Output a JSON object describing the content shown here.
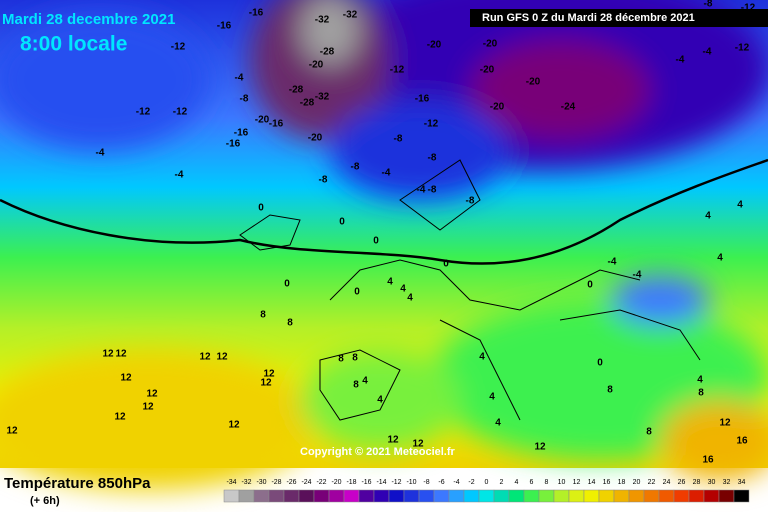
{
  "header": {
    "date": "Mardi 28 decembre 2021",
    "time": "8:00 locale",
    "run": "Run GFS 0 Z du Mardi 28 décembre 2021"
  },
  "map": {
    "copyright": "Copyright © 2021 Meteociel.fr",
    "contour_labels": [
      -16,
      -12,
      -16,
      -32,
      -32,
      -28,
      -20,
      -12,
      -20,
      -20,
      -20,
      -20,
      -24,
      -20,
      -16,
      -12,
      -8,
      -8,
      -8,
      -8,
      -4,
      -12,
      -12,
      -4,
      -8,
      -4,
      -4,
      -20,
      -16,
      -16,
      -16,
      -20,
      -28,
      -28,
      -32,
      0,
      0,
      0,
      0,
      0,
      0,
      4,
      4,
      4,
      8,
      8,
      12,
      12,
      12,
      12,
      12,
      12,
      12,
      12,
      12,
      12,
      12,
      12,
      8,
      8,
      8,
      4,
      4,
      4,
      4,
      4,
      0,
      4,
      8,
      8,
      4,
      4,
      4,
      0,
      8,
      12,
      16,
      16,
      12,
      -4,
      -4,
      -8,
      -12,
      -12,
      -4,
      -4,
      -8,
      -8,
      -4,
      12,
      12
    ]
  },
  "legend": {
    "title": "Température 850hPa",
    "subtitle": "(+ 6h)",
    "scale": [
      {
        "value": -34,
        "color": "#c8c8c8"
      },
      {
        "value": -32,
        "color": "#a0a0a0"
      },
      {
        "value": -30,
        "color": "#8c6e8c"
      },
      {
        "value": -28,
        "color": "#7a4a7a"
      },
      {
        "value": -26,
        "color": "#6a2a6a"
      },
      {
        "value": -24,
        "color": "#5a105a"
      },
      {
        "value": -22,
        "color": "#780078"
      },
      {
        "value": -20,
        "color": "#a000a0"
      },
      {
        "value": -18,
        "color": "#c800c8"
      },
      {
        "value": -16,
        "color": "#5000a0"
      },
      {
        "value": -14,
        "color": "#3000b4"
      },
      {
        "value": -12,
        "color": "#1010c8"
      },
      {
        "value": -10,
        "color": "#1e32dc"
      },
      {
        "value": -8,
        "color": "#2850f0"
      },
      {
        "value": -6,
        "color": "#3c78ff"
      },
      {
        "value": -4,
        "color": "#28a0ff"
      },
      {
        "value": -2,
        "color": "#00c8ff"
      },
      {
        "value": 0,
        "color": "#00e6e6"
      },
      {
        "value": 2,
        "color": "#00dcb4"
      },
      {
        "value": 4,
        "color": "#00e678"
      },
      {
        "value": 6,
        "color": "#3cf050"
      },
      {
        "value": 8,
        "color": "#78f03c"
      },
      {
        "value": 10,
        "color": "#b4f028"
      },
      {
        "value": 12,
        "color": "#dcf014"
      },
      {
        "value": 14,
        "color": "#f0f000"
      },
      {
        "value": 16,
        "color": "#f0d200"
      },
      {
        "value": 18,
        "color": "#f0b400"
      },
      {
        "value": 20,
        "color": "#f09600"
      },
      {
        "value": 22,
        "color": "#f07800"
      },
      {
        "value": 24,
        "color": "#f05a00"
      },
      {
        "value": 26,
        "color": "#f03c00"
      },
      {
        "value": 28,
        "color": "#dc1e00"
      },
      {
        "value": 30,
        "color": "#b40000"
      },
      {
        "value": 32,
        "color": "#780000"
      },
      {
        "value": 34,
        "color": "#000000"
      }
    ]
  }
}
